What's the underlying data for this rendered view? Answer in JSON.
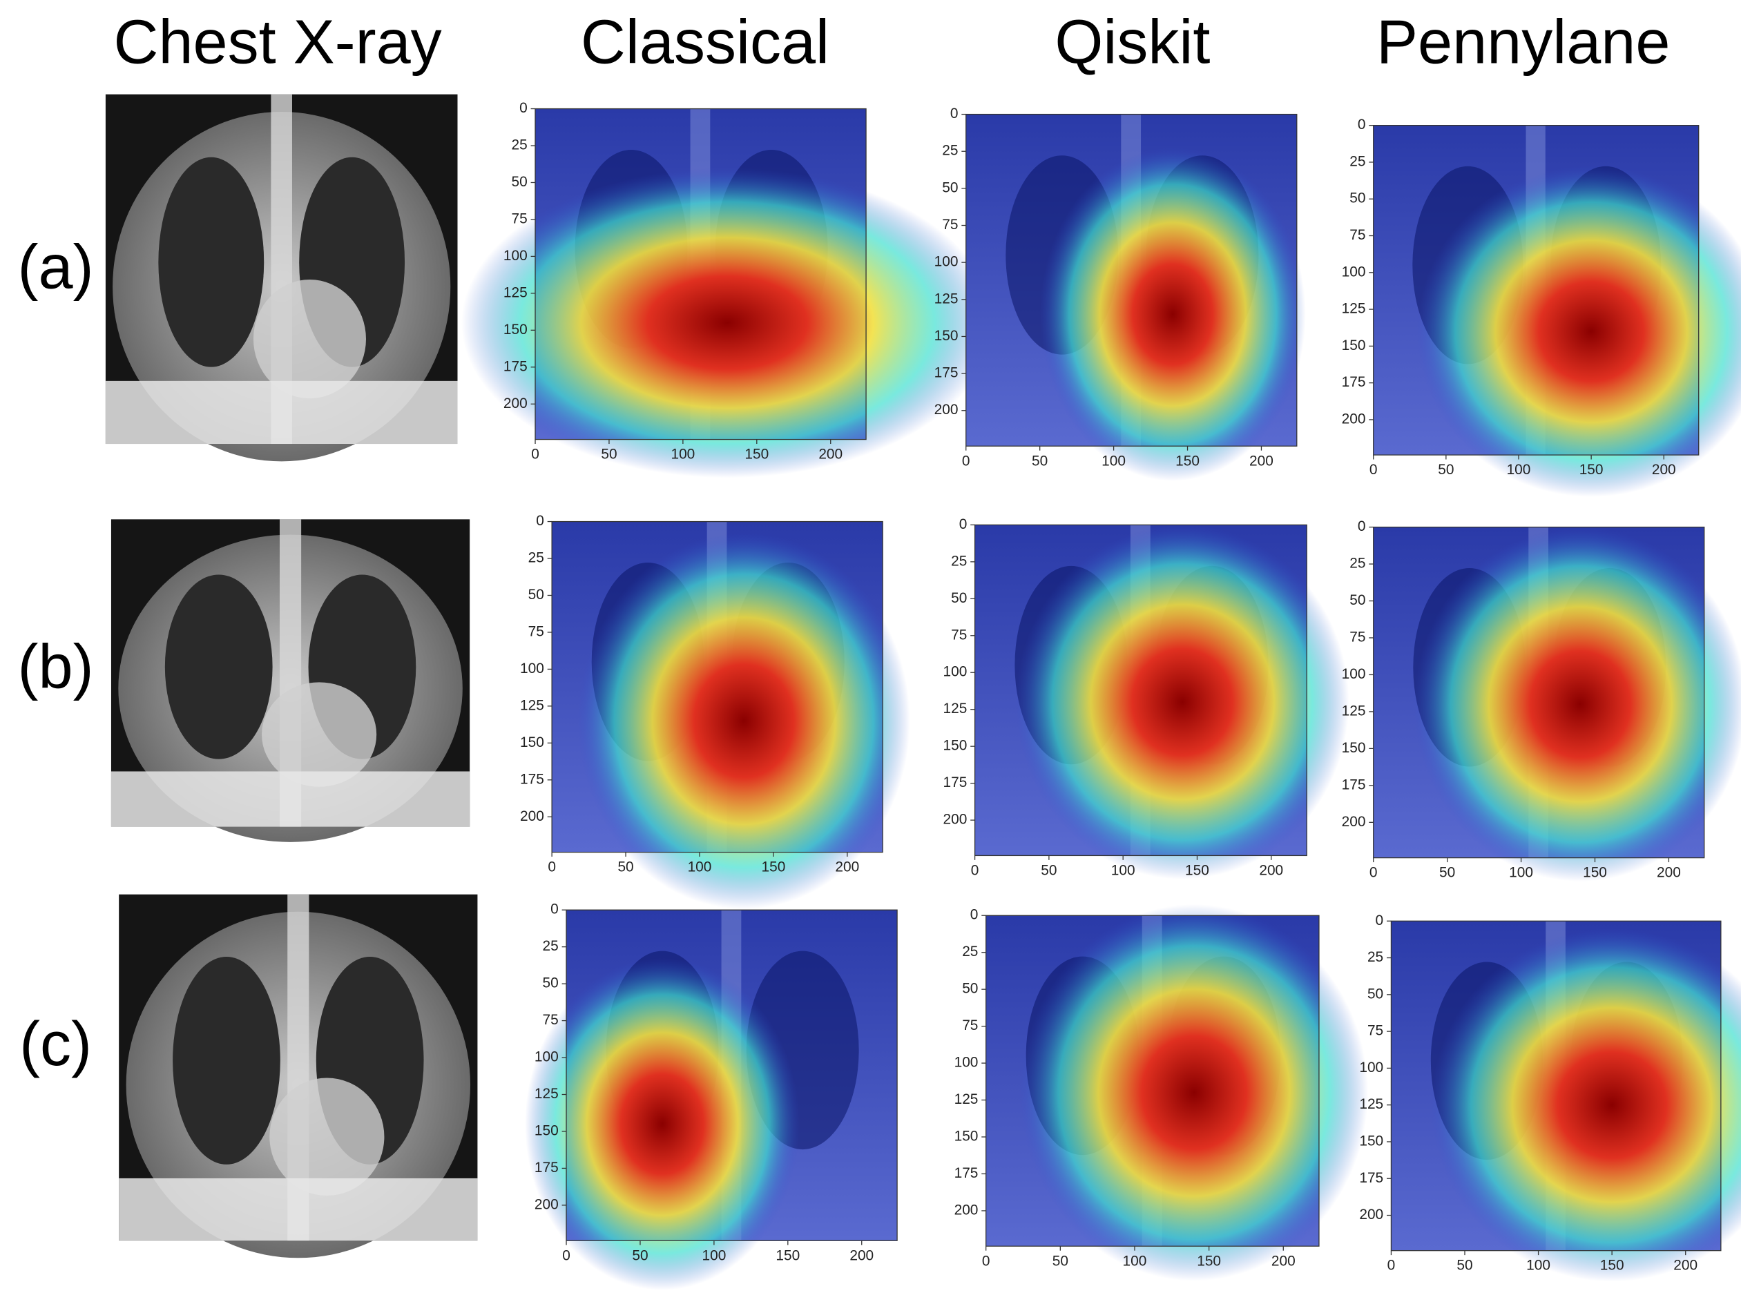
{
  "headers": [
    "Chest X-ray",
    "Classical",
    "Qiskit",
    "Pennylane"
  ],
  "row_labels": [
    "(a)",
    "(b)",
    "(c)"
  ],
  "axes": {
    "xticks": [
      0,
      50,
      100,
      150,
      200
    ],
    "yticks": [
      0,
      25,
      50,
      75,
      100,
      125,
      150,
      175,
      200
    ]
  }
}
